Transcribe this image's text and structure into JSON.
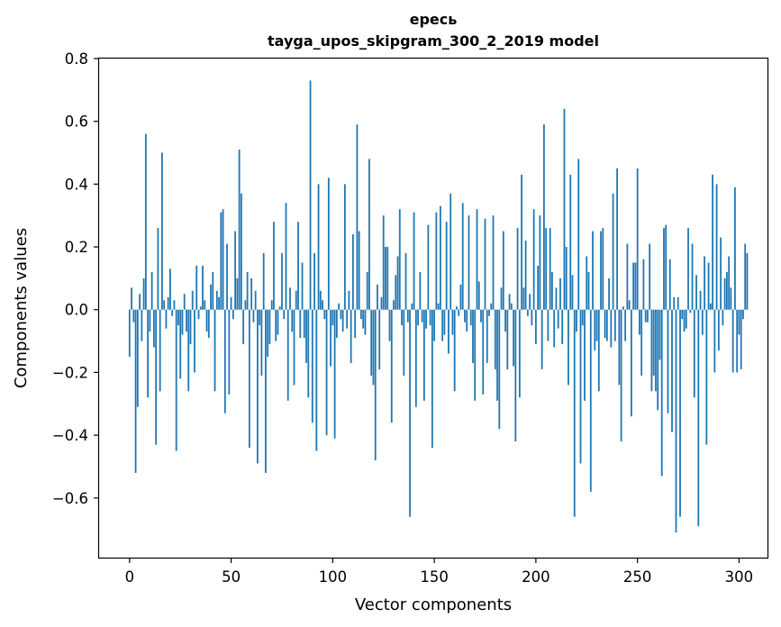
{
  "chart_data": {
    "type": "bar",
    "title": "ересь",
    "subtitle": "tayga_upos_skipgram_300_2_2019 model",
    "xlabel": "Vector components",
    "ylabel": "Components values",
    "xlim": [
      -15,
      314
    ],
    "ylim": [
      -0.79,
      0.8
    ],
    "xticks": [
      0,
      50,
      100,
      150,
      200,
      250,
      300
    ],
    "xtick_labels": [
      "0",
      "50",
      "100",
      "150",
      "200",
      "250",
      "300"
    ],
    "yticks": [
      -0.6,
      -0.4,
      -0.2,
      0.0,
      0.2,
      0.4,
      0.6,
      0.8
    ],
    "ytick_labels": [
      "−0.6",
      "−0.4",
      "−0.2",
      "0.0",
      "0.2",
      "0.4",
      "0.6",
      "0.8"
    ],
    "bar_color": "#1f77b4",
    "grid": false,
    "values": [
      -0.15,
      0.07,
      -0.04,
      -0.52,
      -0.31,
      0.05,
      -0.1,
      0.1,
      0.56,
      -0.28,
      -0.07,
      0.12,
      -0.12,
      -0.43,
      0.26,
      -0.26,
      0.5,
      0.03,
      -0.06,
      0.04,
      0.13,
      -0.02,
      0.03,
      -0.45,
      -0.05,
      -0.22,
      -0.08,
      0.05,
      -0.07,
      -0.26,
      -0.11,
      0.06,
      -0.2,
      0.14,
      -0.03,
      0.01,
      0.14,
      0.03,
      -0.07,
      -0.09,
      0.08,
      0.12,
      -0.26,
      0.06,
      0.04,
      0.31,
      0.32,
      -0.33,
      0.21,
      -0.27,
      0.04,
      -0.03,
      0.25,
      0.1,
      0.51,
      0.37,
      -0.11,
      0.03,
      0.12,
      -0.44,
      0.1,
      -0.04,
      0.06,
      -0.49,
      -0.05,
      -0.21,
      0.18,
      -0.52,
      -0.15,
      -0.11,
      0.03,
      0.28,
      -0.1,
      -0.08,
      0.01,
      0.18,
      -0.03,
      0.34,
      -0.29,
      0.07,
      -0.07,
      -0.24,
      0.06,
      0.28,
      -0.09,
      0.15,
      -0.09,
      -0.17,
      -0.28,
      0.73,
      -0.36,
      0.18,
      -0.45,
      0.4,
      0.06,
      0.03,
      -0.03,
      -0.4,
      0.42,
      -0.18,
      -0.05,
      -0.41,
      -0.09,
      0.02,
      -0.03,
      -0.07,
      0.4,
      -0.06,
      0.06,
      -0.17,
      0.24,
      -0.09,
      0.59,
      0.25,
      -0.03,
      -0.06,
      -0.08,
      0.12,
      0.48,
      -0.21,
      -0.24,
      -0.48,
      0.08,
      -0.19,
      0.04,
      0.3,
      0.2,
      0.2,
      -0.1,
      -0.36,
      0.03,
      0.11,
      0.17,
      0.32,
      -0.05,
      -0.21,
      0.18,
      -0.04,
      -0.66,
      0.02,
      0.31,
      -0.31,
      -0.05,
      0.12,
      -0.04,
      -0.29,
      -0.06,
      0.27,
      -0.05,
      -0.44,
      -0.1,
      0.31,
      0.02,
      0.33,
      -0.1,
      -0.08,
      0.28,
      -0.14,
      0.37,
      -0.08,
      -0.26,
      0.01,
      -0.02,
      0.08,
      0.34,
      -0.04,
      -0.07,
      0.3,
      -0.05,
      -0.17,
      -0.29,
      0.32,
      0.09,
      -0.04,
      -0.27,
      0.29,
      -0.17,
      -0.02,
      0.02,
      0.3,
      -0.19,
      -0.29,
      -0.38,
      0.07,
      0.25,
      -0.07,
      -0.19,
      0.05,
      0.02,
      -0.18,
      -0.42,
      0.26,
      -0.28,
      0.43,
      0.07,
      0.22,
      -0.02,
      0.05,
      -0.05,
      0.32,
      -0.11,
      0.14,
      0.3,
      -0.19,
      0.59,
      0.26,
      -0.1,
      0.26,
      0.12,
      -0.12,
      0.07,
      -0.06,
      0.1,
      -0.11,
      0.64,
      0.2,
      -0.24,
      0.43,
      0.11,
      -0.66,
      -0.07,
      0.48,
      -0.49,
      -0.05,
      -0.29,
      0.17,
      0.12,
      -0.58,
      0.25,
      -0.13,
      -0.1,
      -0.26,
      0.25,
      0.26,
      -0.09,
      -0.1,
      0.1,
      -0.12,
      0.37,
      -0.1,
      0.45,
      -0.24,
      -0.42,
      0.01,
      -0.1,
      0.21,
      0.03,
      -0.34,
      0.15,
      0.15,
      0.45,
      -0.08,
      -0.21,
      0.16,
      -0.04,
      -0.04,
      0.21,
      -0.26,
      -0.21,
      -0.26,
      -0.32,
      -0.16,
      -0.53,
      0.26,
      0.27,
      -0.33,
      0.16,
      -0.39,
      0.04,
      -0.71,
      0.04,
      -0.66,
      -0.03,
      -0.07,
      -0.06,
      0.26,
      -0.01,
      0.21,
      -0.28,
      0.11,
      -0.69,
      0.06,
      -0.08,
      0.17,
      -0.43,
      0.15,
      0.02,
      0.43,
      -0.2,
      0.4,
      -0.13,
      0.23,
      -0.05,
      0.1,
      0.12,
      0.17,
      0.07,
      -0.2,
      0.39,
      -0.2,
      -0.08,
      -0.19,
      -0.03,
      0.21,
      0.18
    ]
  }
}
